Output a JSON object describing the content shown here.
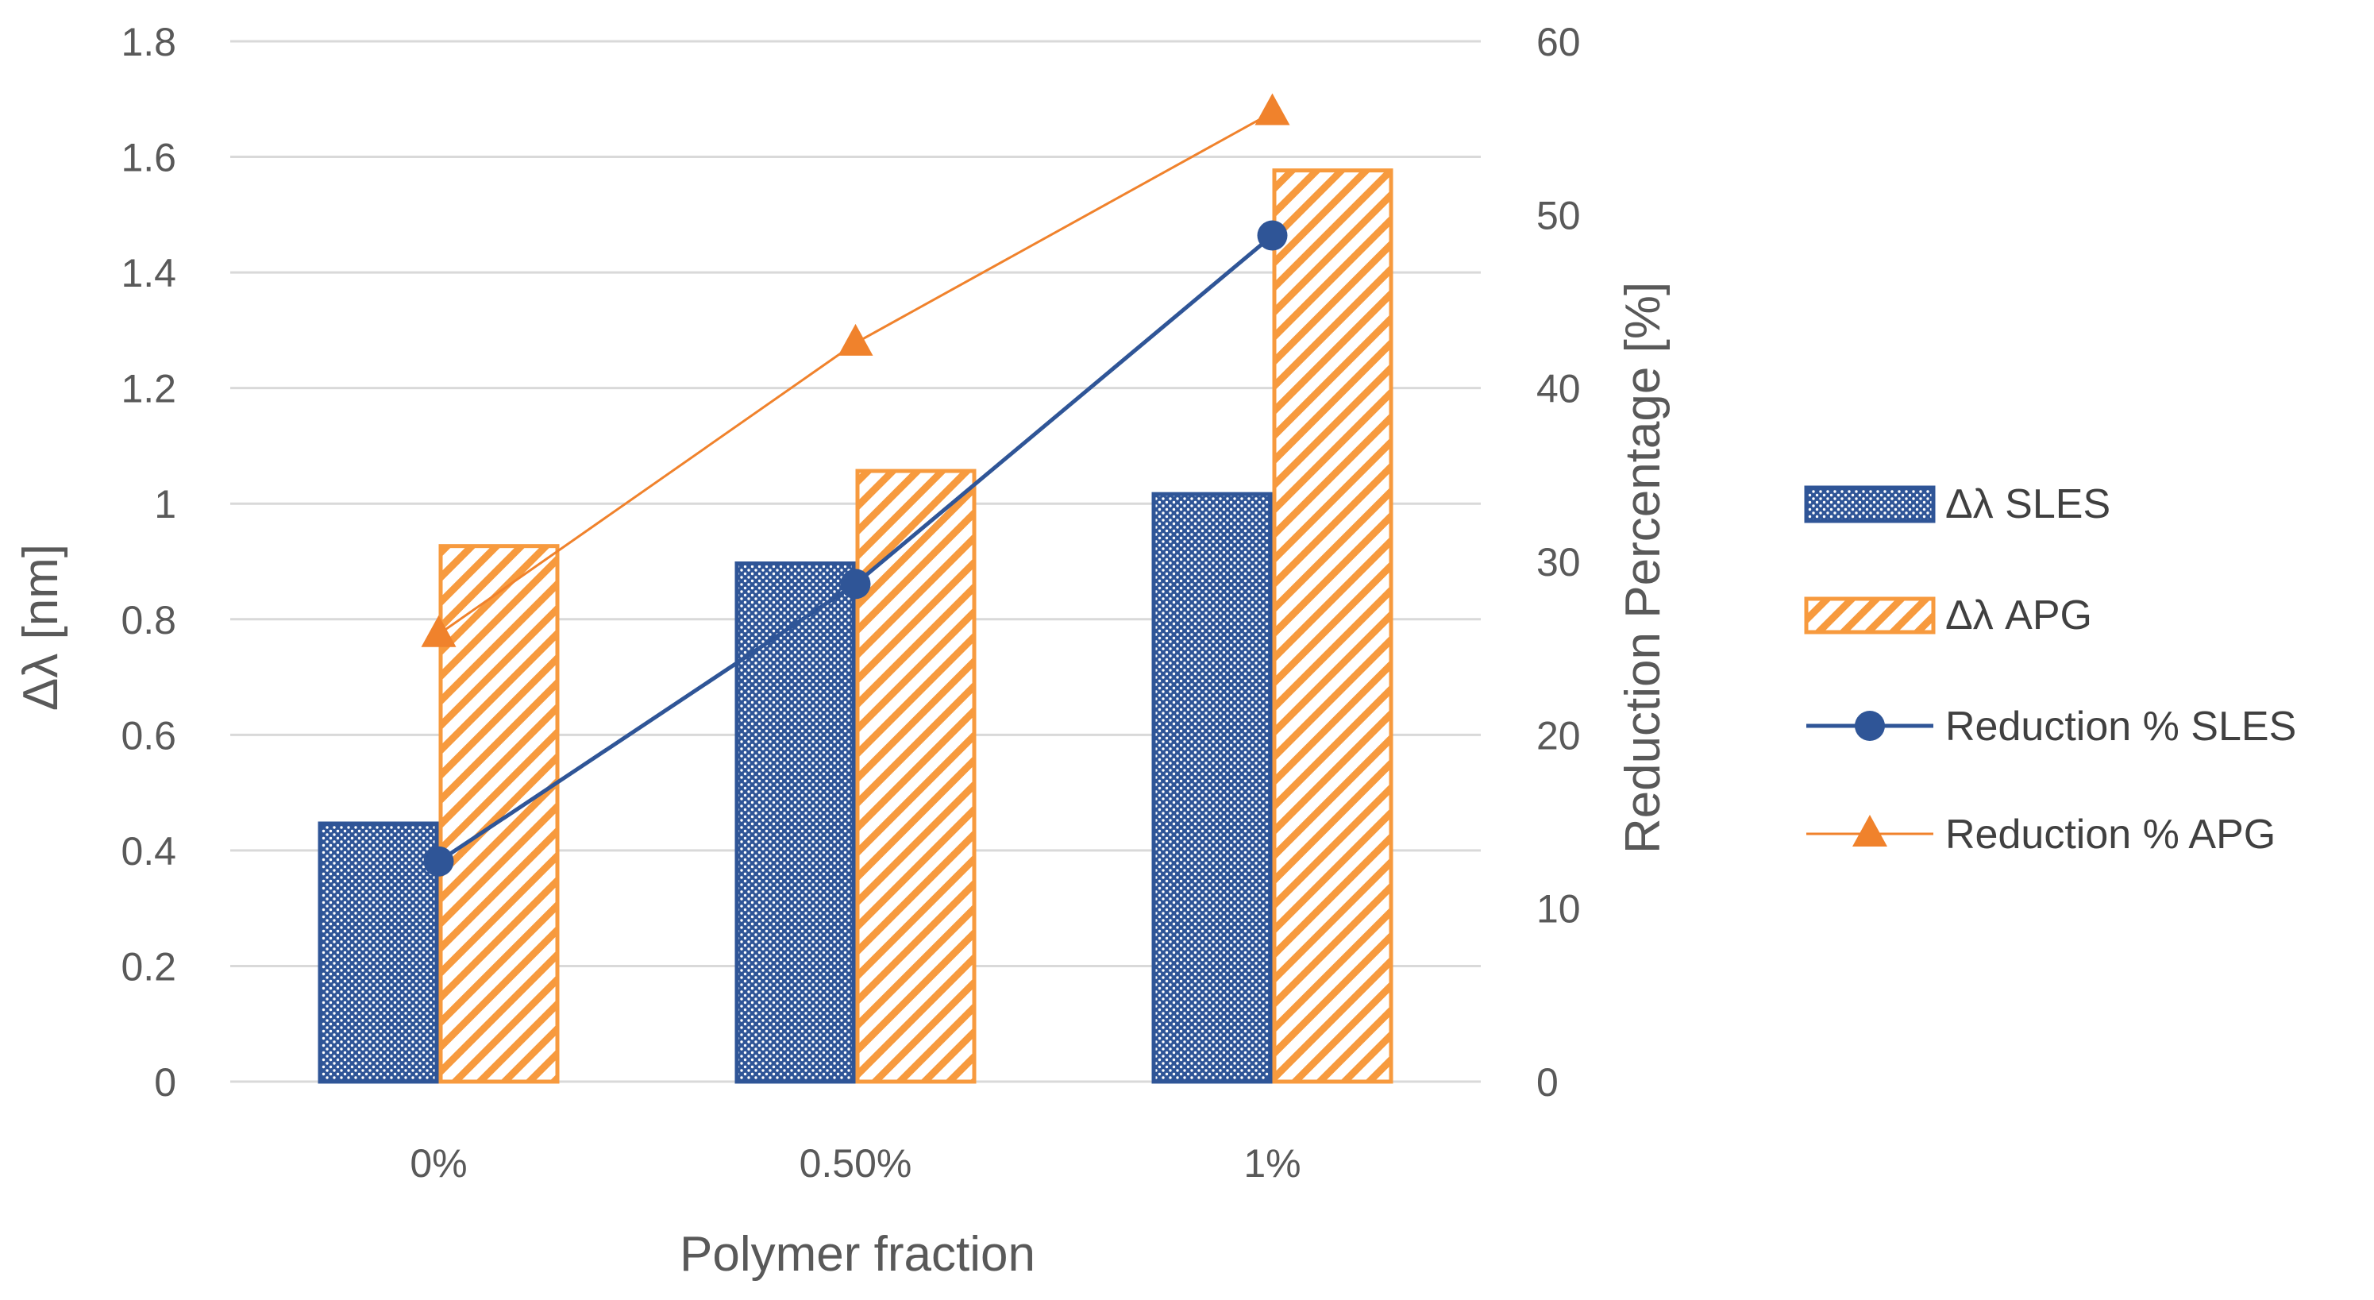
{
  "chart_data": {
    "type": "bar+line",
    "title": "",
    "xlabel": "Polymer fraction",
    "ylabel_left": "Δλ  [nm]",
    "ylabel_right": "Reduction Percentage [%]",
    "categories": [
      "0%",
      "0.50%",
      "1%"
    ],
    "ylim_left": [
      0,
      1.8
    ],
    "yticks_left": [
      "0",
      "0.2",
      "0.4",
      "0.6",
      "0.8",
      "1",
      "1.2",
      "1.4",
      "1.6",
      "1.8"
    ],
    "ylim_right": [
      0,
      60
    ],
    "yticks_right": [
      "0",
      "10",
      "20",
      "30",
      "40",
      "50",
      "60"
    ],
    "grid": true,
    "legend_position": "right",
    "bar_series": [
      {
        "name": "Δλ SLES",
        "values": [
          0.45,
          0.9,
          1.02
        ],
        "color": "#2f5597",
        "pattern": "dots"
      },
      {
        "name": "Δλ APG",
        "values": [
          0.93,
          1.06,
          1.58
        ],
        "color": "#f79a3e",
        "pattern": "diagonal-stripes"
      }
    ],
    "line_series": [
      {
        "name": "Reduction % SLES",
        "values": [
          12.7,
          28.7,
          48.8
        ],
        "color": "#2f5597",
        "marker": "circle",
        "axis": "right"
      },
      {
        "name": "Reduction % APG",
        "values": [
          25.8,
          42.6,
          55.9
        ],
        "color": "#f0822c",
        "marker": "triangle",
        "axis": "right"
      }
    ]
  }
}
